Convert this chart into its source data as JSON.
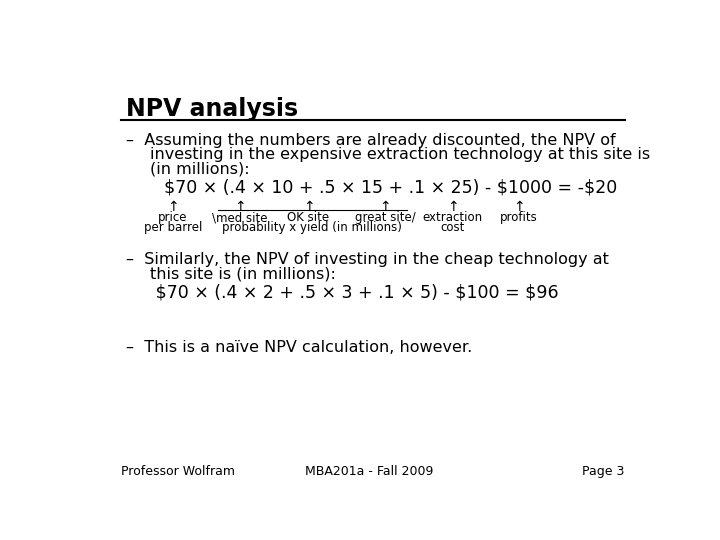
{
  "title": "NPV analysis",
  "bg_color": "#ffffff",
  "title_color": "#000000",
  "title_fontsize": 17,
  "body_fontsize": 11.5,
  "formula_fontsize": 12.5,
  "label_fontsize": 8.5,
  "footer_fontsize": 9,
  "bullet1_line1": "Assuming the numbers are already discounted, the NPV of",
  "bullet1_line2": "investing in the expensive extraction technology at this site is",
  "bullet1_line3": "(in millions):",
  "formula1": "$70 × (.4 × 10 + .5 × 15 + .1 × 25) - $1000 = -$20",
  "bullet2_line1": "Similarly, the NPV of investing in the cheap technology at",
  "bullet2_line2": "this site is (in millions):",
  "formula2": " $70 × (.4 × 2 + .5 × 3 + .1 × 5) - $100 = $96",
  "bullet3": "This is a naïve NPV calculation, however.",
  "footer_left": "Professor Wolfram",
  "footer_center": "MBA201a - Fall 2009",
  "footer_right": "Page 3",
  "dash": "–",
  "arrow": "↑"
}
